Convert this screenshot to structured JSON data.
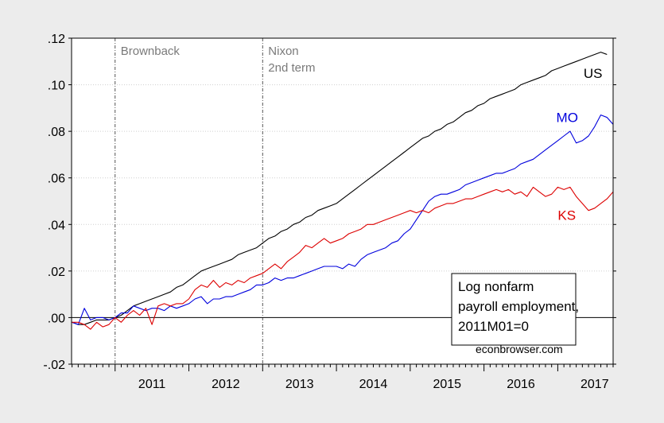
{
  "chart_data": {
    "type": "line",
    "title": "",
    "xlabel": "",
    "ylabel": "",
    "xlim": [
      2010.41,
      2017.75
    ],
    "ylim": [
      -0.02,
      0.12
    ],
    "y_ticks": [
      {
        "value": 0.12,
        "label": ".12"
      },
      {
        "value": 0.1,
        "label": ".10"
      },
      {
        "value": 0.08,
        "label": ".08"
      },
      {
        "value": 0.06,
        "label": ".06"
      },
      {
        "value": 0.04,
        "label": ".04"
      },
      {
        "value": 0.02,
        "label": ".02"
      },
      {
        "value": 0.0,
        "label": ".00"
      },
      {
        "value": -0.02,
        "label": "-.02"
      }
    ],
    "x_ticks": [
      {
        "value": 2011,
        "label": "2011"
      },
      {
        "value": 2012,
        "label": "2012"
      },
      {
        "value": 2013,
        "label": "2013"
      },
      {
        "value": 2014,
        "label": "2014"
      },
      {
        "value": 2015,
        "label": "2015"
      },
      {
        "value": 2016,
        "label": "2016"
      },
      {
        "value": 2017,
        "label": "2017"
      }
    ],
    "grid": true,
    "zero_line": true,
    "events": [
      {
        "x": 2011.0,
        "lines": [
          "Brownback"
        ]
      },
      {
        "x": 2013.0,
        "lines": [
          "Nixon",
          "2nd term"
        ]
      }
    ],
    "annotation": {
      "lines": [
        "Log nonfarm",
        "payroll employment,",
        "2011M01=0"
      ],
      "source": "econbrowser.com"
    },
    "series": [
      {
        "name": "US",
        "color": "#000000",
        "points": [
          [
            2010.417,
            -0.002
          ],
          [
            2010.5,
            -0.003
          ],
          [
            2010.583,
            -0.003
          ],
          [
            2010.667,
            -0.002
          ],
          [
            2010.75,
            -0.001
          ],
          [
            2010.833,
            -0.001
          ],
          [
            2010.917,
            -0.001
          ],
          [
            2011.0,
            0.0
          ],
          [
            2011.083,
            0.001
          ],
          [
            2011.167,
            0.003
          ],
          [
            2011.25,
            0.005
          ],
          [
            2011.333,
            0.006
          ],
          [
            2011.417,
            0.007
          ],
          [
            2011.5,
            0.008
          ],
          [
            2011.583,
            0.009
          ],
          [
            2011.667,
            0.01
          ],
          [
            2011.75,
            0.011
          ],
          [
            2011.833,
            0.013
          ],
          [
            2011.917,
            0.014
          ],
          [
            2012.0,
            0.016
          ],
          [
            2012.083,
            0.018
          ],
          [
            2012.167,
            0.02
          ],
          [
            2012.25,
            0.021
          ],
          [
            2012.333,
            0.022
          ],
          [
            2012.417,
            0.023
          ],
          [
            2012.5,
            0.024
          ],
          [
            2012.583,
            0.025
          ],
          [
            2012.667,
            0.027
          ],
          [
            2012.75,
            0.028
          ],
          [
            2012.833,
            0.029
          ],
          [
            2012.917,
            0.03
          ],
          [
            2013.0,
            0.032
          ],
          [
            2013.083,
            0.034
          ],
          [
            2013.167,
            0.035
          ],
          [
            2013.25,
            0.037
          ],
          [
            2013.333,
            0.038
          ],
          [
            2013.417,
            0.04
          ],
          [
            2013.5,
            0.041
          ],
          [
            2013.583,
            0.043
          ],
          [
            2013.667,
            0.044
          ],
          [
            2013.75,
            0.046
          ],
          [
            2013.833,
            0.047
          ],
          [
            2013.917,
            0.048
          ],
          [
            2014.0,
            0.049
          ],
          [
            2014.083,
            0.051
          ],
          [
            2014.167,
            0.053
          ],
          [
            2014.25,
            0.055
          ],
          [
            2014.333,
            0.057
          ],
          [
            2014.417,
            0.059
          ],
          [
            2014.5,
            0.061
          ],
          [
            2014.583,
            0.063
          ],
          [
            2014.667,
            0.065
          ],
          [
            2014.75,
            0.067
          ],
          [
            2014.833,
            0.069
          ],
          [
            2014.917,
            0.071
          ],
          [
            2015.0,
            0.073
          ],
          [
            2015.083,
            0.075
          ],
          [
            2015.167,
            0.077
          ],
          [
            2015.25,
            0.078
          ],
          [
            2015.333,
            0.08
          ],
          [
            2015.417,
            0.081
          ],
          [
            2015.5,
            0.083
          ],
          [
            2015.583,
            0.084
          ],
          [
            2015.667,
            0.086
          ],
          [
            2015.75,
            0.088
          ],
          [
            2015.833,
            0.089
          ],
          [
            2015.917,
            0.091
          ],
          [
            2016.0,
            0.092
          ],
          [
            2016.083,
            0.094
          ],
          [
            2016.167,
            0.095
          ],
          [
            2016.25,
            0.096
          ],
          [
            2016.333,
            0.097
          ],
          [
            2016.417,
            0.098
          ],
          [
            2016.5,
            0.1
          ],
          [
            2016.583,
            0.101
          ],
          [
            2016.667,
            0.102
          ],
          [
            2016.75,
            0.103
          ],
          [
            2016.833,
            0.104
          ],
          [
            2016.917,
            0.106
          ],
          [
            2017.0,
            0.107
          ],
          [
            2017.083,
            0.108
          ],
          [
            2017.167,
            0.109
          ],
          [
            2017.25,
            0.11
          ],
          [
            2017.333,
            0.111
          ],
          [
            2017.417,
            0.112
          ],
          [
            2017.5,
            0.113
          ],
          [
            2017.583,
            0.114
          ],
          [
            2017.667,
            0.113
          ]
        ]
      },
      {
        "name": "MO",
        "color": "#0000dd",
        "points": [
          [
            2010.417,
            -0.002
          ],
          [
            2010.5,
            -0.003
          ],
          [
            2010.583,
            0.004
          ],
          [
            2010.667,
            -0.001
          ],
          [
            2010.75,
            0.0
          ],
          [
            2010.833,
            0.0
          ],
          [
            2010.917,
            -0.001
          ],
          [
            2011.0,
            0.0
          ],
          [
            2011.083,
            0.002
          ],
          [
            2011.167,
            0.002
          ],
          [
            2011.25,
            0.005
          ],
          [
            2011.333,
            0.004
          ],
          [
            2011.417,
            0.003
          ],
          [
            2011.5,
            0.004
          ],
          [
            2011.583,
            0.004
          ],
          [
            2011.667,
            0.003
          ],
          [
            2011.75,
            0.005
          ],
          [
            2011.833,
            0.004
          ],
          [
            2011.917,
            0.005
          ],
          [
            2012.0,
            0.006
          ],
          [
            2012.083,
            0.008
          ],
          [
            2012.167,
            0.009
          ],
          [
            2012.25,
            0.006
          ],
          [
            2012.333,
            0.008
          ],
          [
            2012.417,
            0.008
          ],
          [
            2012.5,
            0.009
          ],
          [
            2012.583,
            0.009
          ],
          [
            2012.667,
            0.01
          ],
          [
            2012.75,
            0.011
          ],
          [
            2012.833,
            0.012
          ],
          [
            2012.917,
            0.014
          ],
          [
            2013.0,
            0.014
          ],
          [
            2013.083,
            0.015
          ],
          [
            2013.167,
            0.017
          ],
          [
            2013.25,
            0.016
          ],
          [
            2013.333,
            0.017
          ],
          [
            2013.417,
            0.017
          ],
          [
            2013.5,
            0.018
          ],
          [
            2013.583,
            0.019
          ],
          [
            2013.667,
            0.02
          ],
          [
            2013.75,
            0.021
          ],
          [
            2013.833,
            0.022
          ],
          [
            2013.917,
            0.022
          ],
          [
            2014.0,
            0.022
          ],
          [
            2014.083,
            0.021
          ],
          [
            2014.167,
            0.023
          ],
          [
            2014.25,
            0.022
          ],
          [
            2014.333,
            0.025
          ],
          [
            2014.417,
            0.027
          ],
          [
            2014.5,
            0.028
          ],
          [
            2014.583,
            0.029
          ],
          [
            2014.667,
            0.03
          ],
          [
            2014.75,
            0.032
          ],
          [
            2014.833,
            0.033
          ],
          [
            2014.917,
            0.036
          ],
          [
            2015.0,
            0.038
          ],
          [
            2015.083,
            0.042
          ],
          [
            2015.167,
            0.046
          ],
          [
            2015.25,
            0.05
          ],
          [
            2015.333,
            0.052
          ],
          [
            2015.417,
            0.053
          ],
          [
            2015.5,
            0.053
          ],
          [
            2015.583,
            0.054
          ],
          [
            2015.667,
            0.055
          ],
          [
            2015.75,
            0.057
          ],
          [
            2015.833,
            0.058
          ],
          [
            2015.917,
            0.059
          ],
          [
            2016.0,
            0.06
          ],
          [
            2016.083,
            0.061
          ],
          [
            2016.167,
            0.062
          ],
          [
            2016.25,
            0.062
          ],
          [
            2016.333,
            0.063
          ],
          [
            2016.417,
            0.064
          ],
          [
            2016.5,
            0.066
          ],
          [
            2016.583,
            0.067
          ],
          [
            2016.667,
            0.068
          ],
          [
            2016.75,
            0.07
          ],
          [
            2016.833,
            0.072
          ],
          [
            2016.917,
            0.074
          ],
          [
            2017.0,
            0.076
          ],
          [
            2017.083,
            0.078
          ],
          [
            2017.167,
            0.08
          ],
          [
            2017.25,
            0.075
          ],
          [
            2017.333,
            0.076
          ],
          [
            2017.417,
            0.078
          ],
          [
            2017.5,
            0.082
          ],
          [
            2017.583,
            0.087
          ],
          [
            2017.667,
            0.086
          ],
          [
            2017.75,
            0.083
          ]
        ]
      },
      {
        "name": "KS",
        "color": "#dd0000",
        "points": [
          [
            2010.417,
            -0.002
          ],
          [
            2010.5,
            -0.002
          ],
          [
            2010.583,
            -0.003
          ],
          [
            2010.667,
            -0.005
          ],
          [
            2010.75,
            -0.002
          ],
          [
            2010.833,
            -0.004
          ],
          [
            2010.917,
            -0.003
          ],
          [
            2011.0,
            0.0
          ],
          [
            2011.083,
            -0.002
          ],
          [
            2011.167,
            0.001
          ],
          [
            2011.25,
            0.003
          ],
          [
            2011.333,
            0.001
          ],
          [
            2011.417,
            0.004
          ],
          [
            2011.5,
            -0.003
          ],
          [
            2011.583,
            0.005
          ],
          [
            2011.667,
            0.006
          ],
          [
            2011.75,
            0.005
          ],
          [
            2011.833,
            0.006
          ],
          [
            2011.917,
            0.006
          ],
          [
            2012.0,
            0.008
          ],
          [
            2012.083,
            0.012
          ],
          [
            2012.167,
            0.014
          ],
          [
            2012.25,
            0.013
          ],
          [
            2012.333,
            0.016
          ],
          [
            2012.417,
            0.013
          ],
          [
            2012.5,
            0.015
          ],
          [
            2012.583,
            0.014
          ],
          [
            2012.667,
            0.016
          ],
          [
            2012.75,
            0.015
          ],
          [
            2012.833,
            0.017
          ],
          [
            2012.917,
            0.018
          ],
          [
            2013.0,
            0.019
          ],
          [
            2013.083,
            0.021
          ],
          [
            2013.167,
            0.023
          ],
          [
            2013.25,
            0.021
          ],
          [
            2013.333,
            0.024
          ],
          [
            2013.417,
            0.026
          ],
          [
            2013.5,
            0.028
          ],
          [
            2013.583,
            0.031
          ],
          [
            2013.667,
            0.03
          ],
          [
            2013.75,
            0.032
          ],
          [
            2013.833,
            0.034
          ],
          [
            2013.917,
            0.032
          ],
          [
            2014.0,
            0.033
          ],
          [
            2014.083,
            0.034
          ],
          [
            2014.167,
            0.036
          ],
          [
            2014.25,
            0.037
          ],
          [
            2014.333,
            0.038
          ],
          [
            2014.417,
            0.04
          ],
          [
            2014.5,
            0.04
          ],
          [
            2014.583,
            0.041
          ],
          [
            2014.667,
            0.042
          ],
          [
            2014.75,
            0.043
          ],
          [
            2014.833,
            0.044
          ],
          [
            2014.917,
            0.045
          ],
          [
            2015.0,
            0.046
          ],
          [
            2015.083,
            0.045
          ],
          [
            2015.167,
            0.046
          ],
          [
            2015.25,
            0.045
          ],
          [
            2015.333,
            0.047
          ],
          [
            2015.417,
            0.048
          ],
          [
            2015.5,
            0.049
          ],
          [
            2015.583,
            0.049
          ],
          [
            2015.667,
            0.05
          ],
          [
            2015.75,
            0.051
          ],
          [
            2015.833,
            0.051
          ],
          [
            2015.917,
            0.052
          ],
          [
            2016.0,
            0.053
          ],
          [
            2016.083,
            0.054
          ],
          [
            2016.167,
            0.055
          ],
          [
            2016.25,
            0.054
          ],
          [
            2016.333,
            0.055
          ],
          [
            2016.417,
            0.053
          ],
          [
            2016.5,
            0.054
          ],
          [
            2016.583,
            0.052
          ],
          [
            2016.667,
            0.056
          ],
          [
            2016.75,
            0.054
          ],
          [
            2016.833,
            0.052
          ],
          [
            2016.917,
            0.053
          ],
          [
            2017.0,
            0.056
          ],
          [
            2017.083,
            0.055
          ],
          [
            2017.167,
            0.056
          ],
          [
            2017.25,
            0.052
          ],
          [
            2017.333,
            0.049
          ],
          [
            2017.417,
            0.046
          ],
          [
            2017.5,
            0.047
          ],
          [
            2017.583,
            0.049
          ],
          [
            2017.667,
            0.051
          ],
          [
            2017.75,
            0.054
          ]
        ]
      }
    ]
  }
}
